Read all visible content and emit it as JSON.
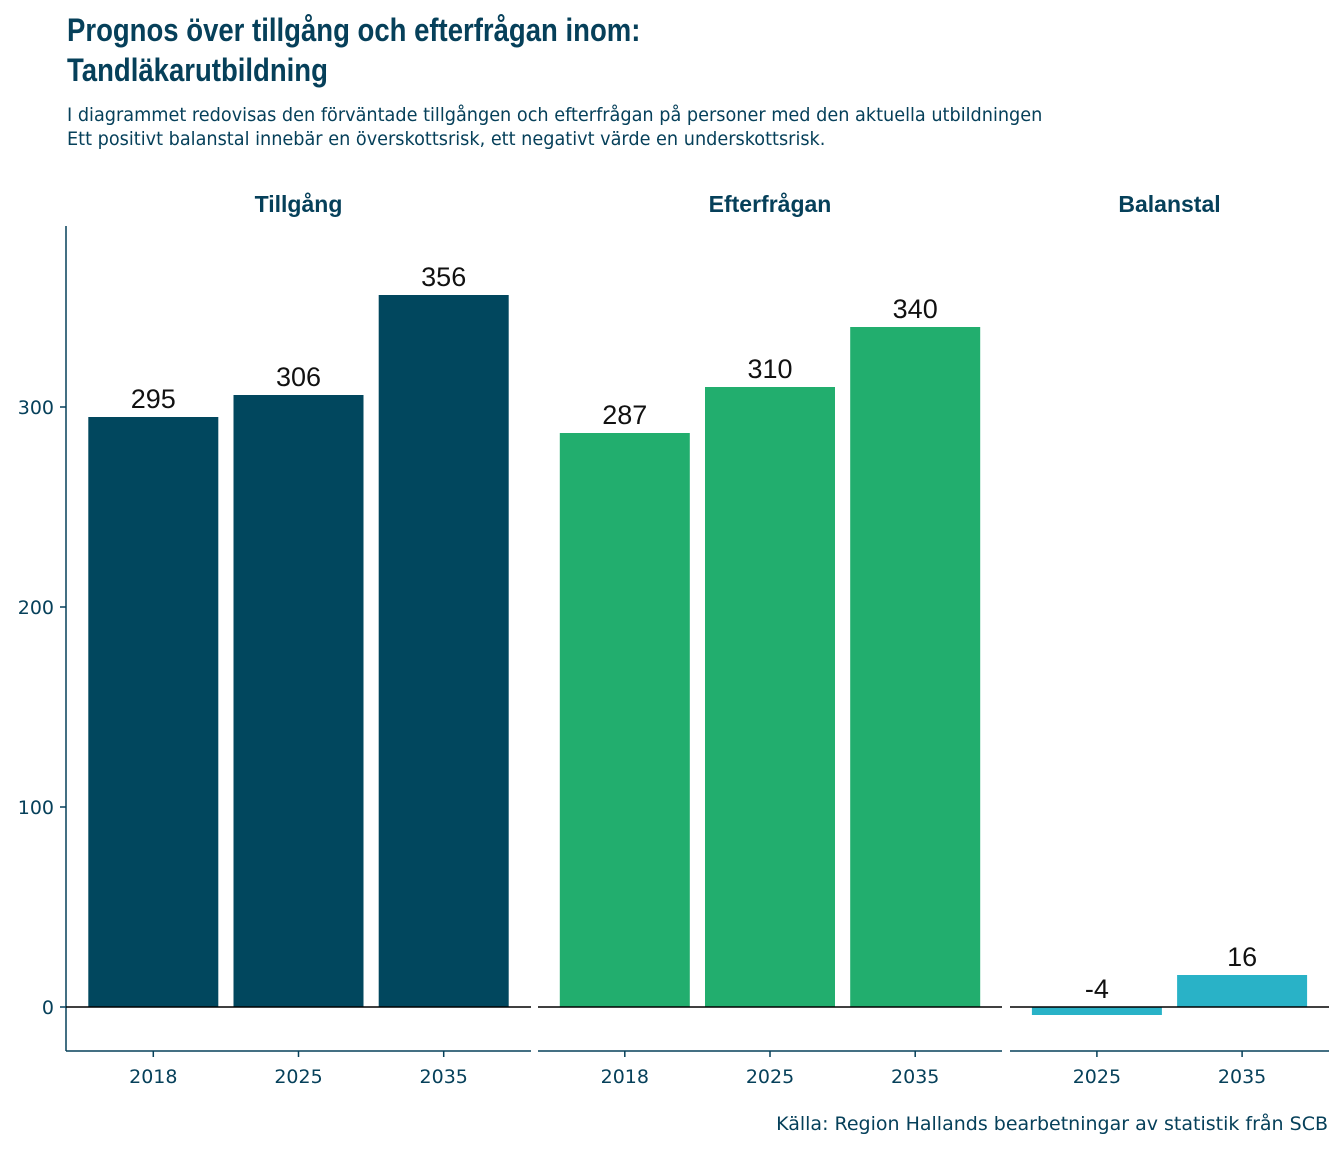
{
  "title_line1": "Prognos över tillgång och efterfrågan inom:",
  "title_line2": "Tandläkarutbildning",
  "subtitle_line1": "I diagrammet redovisas den förväntade tillgången och efterfrågan på personer med den aktuella utbildningen",
  "subtitle_line2": "Ett positivt balanstal innebär en överskottsrisk, ett negativt värde en underskottsrisk.",
  "caption": "Källa: Region Hallands bearbetningar av statistik från SCB",
  "colors": {
    "text": "#06405a",
    "tillgang": "#01475e",
    "efterfragan": "#22ae6e",
    "balanstal": "#29b2c7"
  },
  "chart_data": {
    "type": "bar",
    "ylim": [
      -22,
      390
    ],
    "yticks": [
      0,
      100,
      200,
      300
    ],
    "grid": false,
    "panels": [
      {
        "name": "Tillgång",
        "categories": [
          "2018",
          "2025",
          "2035"
        ],
        "values": [
          295,
          306,
          356
        ],
        "color": "#01475e"
      },
      {
        "name": "Efterfrågan",
        "categories": [
          "2018",
          "2025",
          "2035"
        ],
        "values": [
          287,
          310,
          340
        ],
        "color": "#22ae6e"
      },
      {
        "name": "Balanstal",
        "categories": [
          "2025",
          "2035"
        ],
        "values": [
          -4,
          16
        ],
        "color": "#29b2c7"
      }
    ]
  }
}
